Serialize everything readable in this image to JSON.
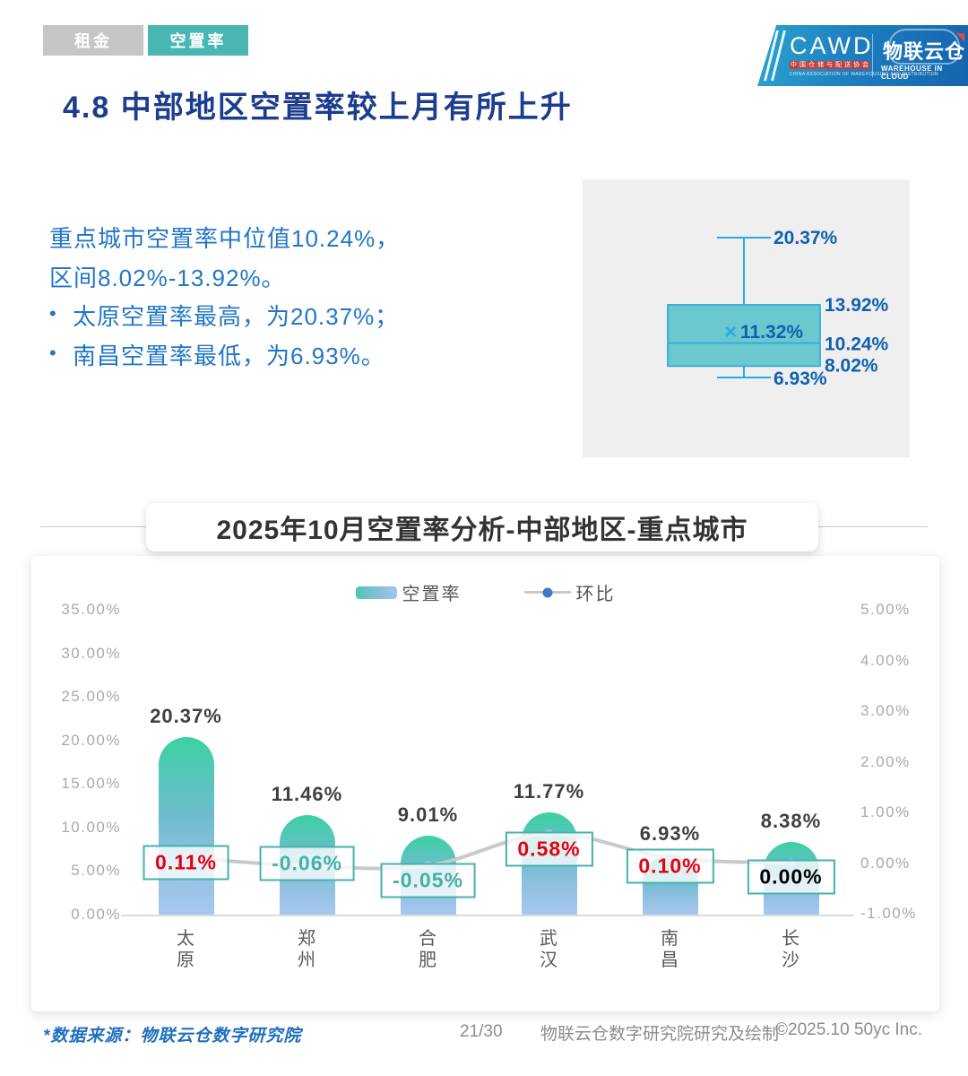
{
  "tabs": {
    "rent": "租金",
    "vacancy": "空置率"
  },
  "logo": {
    "cawd": "CAWD",
    "cawd_sub": "中国仓储与配送协会",
    "cawd_sub_en": "CHINA ASSOCIATION OF WAREHOUSING AND DISTRIBUTION",
    "brand": "物联云仓",
    "brand_sub": "WAREHOUSE IN CLOUD",
    "arrow_glyph": "◥"
  },
  "page_title": "4.8 中部地区空置率较上月有所上升",
  "summary": {
    "line1": "重点城市空置率中位值10.24%，",
    "line2": "区间8.02%-13.92%。",
    "bullet1": "太原空置率最高，为20.37%；",
    "bullet2": "南昌空置率最低，为6.93%。"
  },
  "boxplot": {
    "whisker_high": 20.37,
    "q3": 13.92,
    "mean": 11.32,
    "median": 10.24,
    "q1": 8.02,
    "whisker_low": 6.93,
    "mean_marker": "×",
    "label_color": "#1060b0",
    "box_fill": "#5fc4cc",
    "box_stroke": "#29a8e0"
  },
  "chart_title": "2025年10月空置率分析-中部地区-重点城市",
  "chart_data": {
    "type": "bar",
    "categories": [
      "太原",
      "郑州",
      "合肥",
      "武汉",
      "南昌",
      "长沙"
    ],
    "series": [
      {
        "name": "空置率",
        "type": "bar",
        "axis": "left",
        "values": [
          20.37,
          11.46,
          9.01,
          11.77,
          6.93,
          8.38
        ]
      },
      {
        "name": "环比",
        "type": "line",
        "axis": "right",
        "values": [
          0.11,
          -0.06,
          -0.05,
          0.58,
          0.1,
          0.0
        ]
      }
    ],
    "left_axis": {
      "min": 0,
      "max": 35,
      "ticks": [
        "35.00%",
        "30.00%",
        "25.00%",
        "20.00%",
        "15.00%",
        "10.00%",
        "5.00%",
        "0.00%"
      ]
    },
    "right_axis": {
      "min": -1,
      "max": 5,
      "ticks": [
        "5.00%",
        "4.00%",
        "3.00%",
        "2.00%",
        "1.00%",
        "0.00%",
        "-1.00%"
      ]
    },
    "legend": [
      "空置率",
      "环比"
    ],
    "grid": false,
    "legend_position": "top-center",
    "line_color": "#c9c9c9",
    "dot_color": "#a5bfe8",
    "positive_label_color": "#e60012",
    "negative_label_color": "#45b0a8",
    "zero_label_color": "#000000"
  },
  "footer": {
    "source": "*数据来源：物联云仓数字研究院",
    "page": "21/30",
    "credit": "物联云仓数字研究院研究及绘制",
    "copyright": "©2025.10 50yc Inc."
  }
}
